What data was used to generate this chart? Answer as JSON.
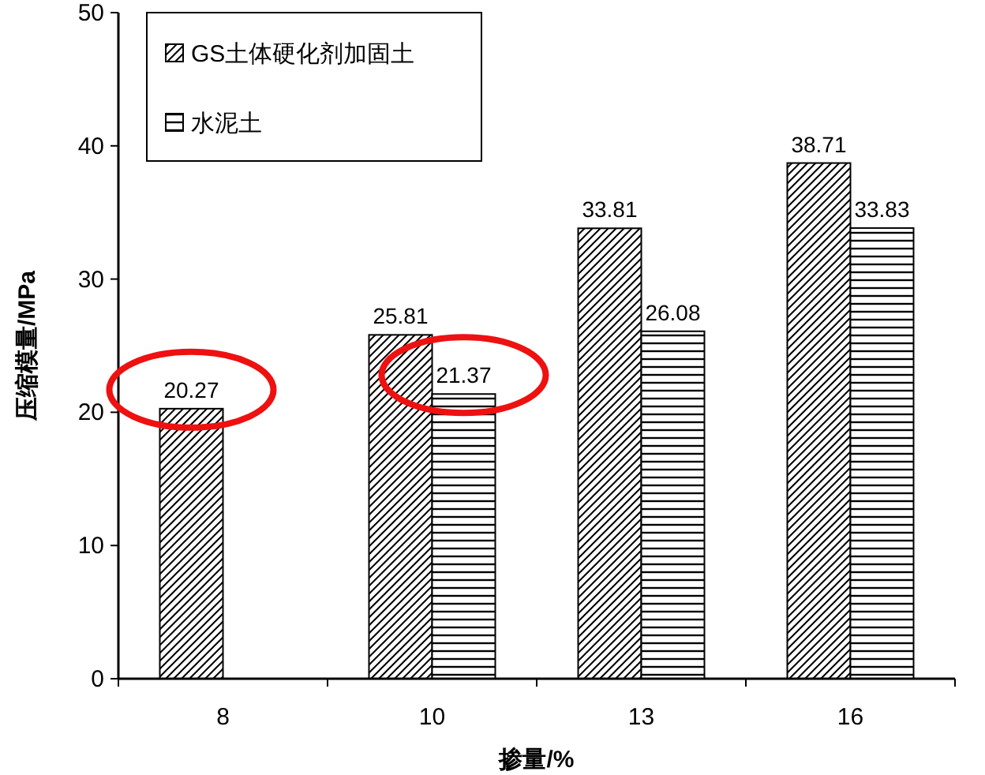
{
  "chart_data": {
    "type": "bar",
    "xlabel": "掺量/%",
    "ylabel": "压缩模量/MPa",
    "categories": [
      "8",
      "10",
      "13",
      "16"
    ],
    "series": [
      {
        "name": "GS土体硬化剂加固土",
        "color": "#000000",
        "values": [
          20.27,
          25.81,
          33.81,
          38.71
        ]
      },
      {
        "name": "水泥土",
        "color": "#000000",
        "values": [
          null,
          21.37,
          26.08,
          33.83
        ]
      }
    ],
    "ylim": [
      0,
      50
    ],
    "yticks": [
      0,
      10,
      20,
      30,
      40,
      50
    ],
    "grid": false,
    "legend": "top left",
    "data_labels": true
  }
}
